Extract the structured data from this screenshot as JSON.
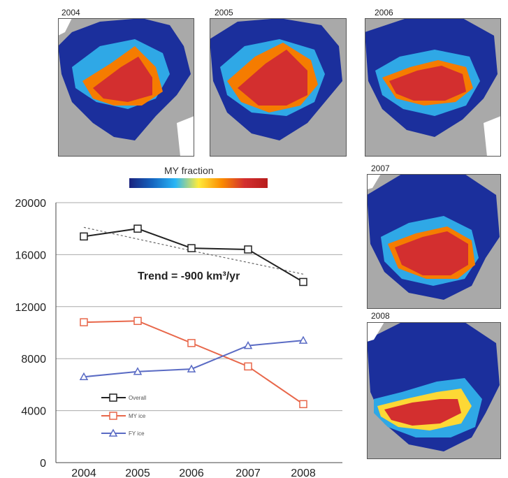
{
  "maps": [
    {
      "year": "2004"
    },
    {
      "year": "2005"
    },
    {
      "year": "2006"
    },
    {
      "year": "2007"
    },
    {
      "year": "2008"
    }
  ],
  "colorbar": {
    "label": "MY fraction",
    "colors": [
      "#1a237e",
      "#1565c0",
      "#29b6f6",
      "#ffeb3b",
      "#fb8c00",
      "#d32f2f",
      "#b71c1c"
    ]
  },
  "colors": {
    "overall": "#222222",
    "my_ice": "#e8674a",
    "fy_ice": "#5a6bc4",
    "trend": "#666666",
    "grid": "#aaaaaa",
    "land": "#a9a9a9",
    "ocean": "#1b2f9c"
  },
  "chart_data": {
    "type": "line",
    "x": [
      "2004",
      "2005",
      "2006",
      "2007",
      "2008"
    ],
    "yticks": [
      "0",
      "4000",
      "8000",
      "12000",
      "16000",
      "20000"
    ],
    "ylim": [
      0,
      20000
    ],
    "annotation": "Trend = -900 km³/yr",
    "grid": true,
    "legend_position": "bottom-left",
    "series": [
      {
        "name": "Overall",
        "marker": "square",
        "values": [
          17400,
          18000,
          16500,
          16400,
          13900
        ]
      },
      {
        "name": "MY ice",
        "marker": "square",
        "values": [
          10800,
          10900,
          9200,
          7400,
          4500
        ]
      },
      {
        "name": "FY ice",
        "marker": "triangle",
        "values": [
          6600,
          7000,
          7200,
          9000,
          9400
        ]
      }
    ],
    "trend_line": {
      "values": [
        18100,
        17200,
        16300,
        15400,
        14500
      ]
    }
  }
}
